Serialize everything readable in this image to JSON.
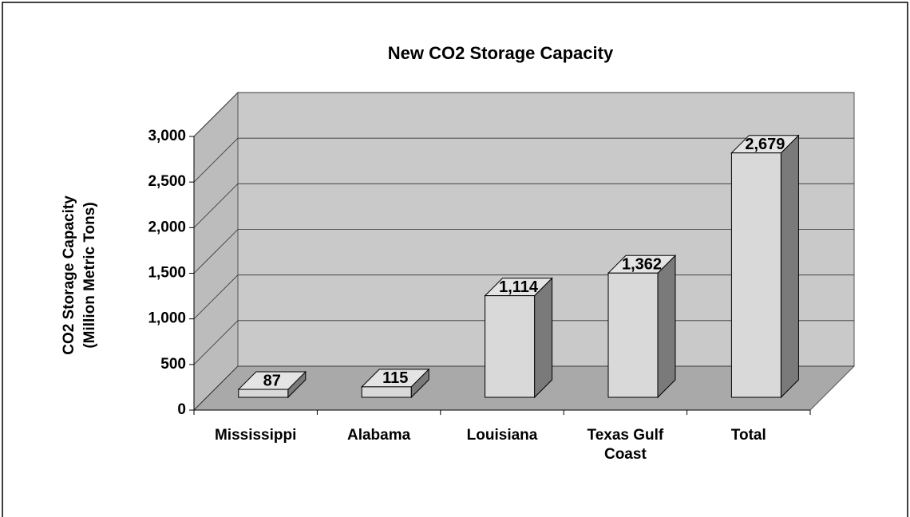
{
  "chart_data": {
    "type": "bar3d",
    "title": "New CO2 Storage Capacity",
    "y_label": [
      "CO2 Storage Capacity",
      "(Million Metric Tons)"
    ],
    "categories": [
      "Mississippi",
      "Alabama",
      "Louisiana",
      "Texas Gulf Coast",
      "Total"
    ],
    "values": [
      87,
      115,
      1114,
      1362,
      2679
    ],
    "value_labels": [
      "87",
      "115",
      "1,114",
      "1,362",
      "2,679"
    ],
    "ylim": [
      0,
      3000
    ],
    "yticks": [
      0,
      500,
      {
        "value": 1000,
        "label": "1,000"
      },
      {
        "value": 1500,
        "label": "1,500"
      },
      {
        "value": 2000,
        "label": "2,000"
      },
      {
        "value": 2500,
        "label": "2,500"
      },
      {
        "value": 3000,
        "label": "3,000"
      }
    ],
    "grid": true,
    "color": "#d9d9d9"
  }
}
